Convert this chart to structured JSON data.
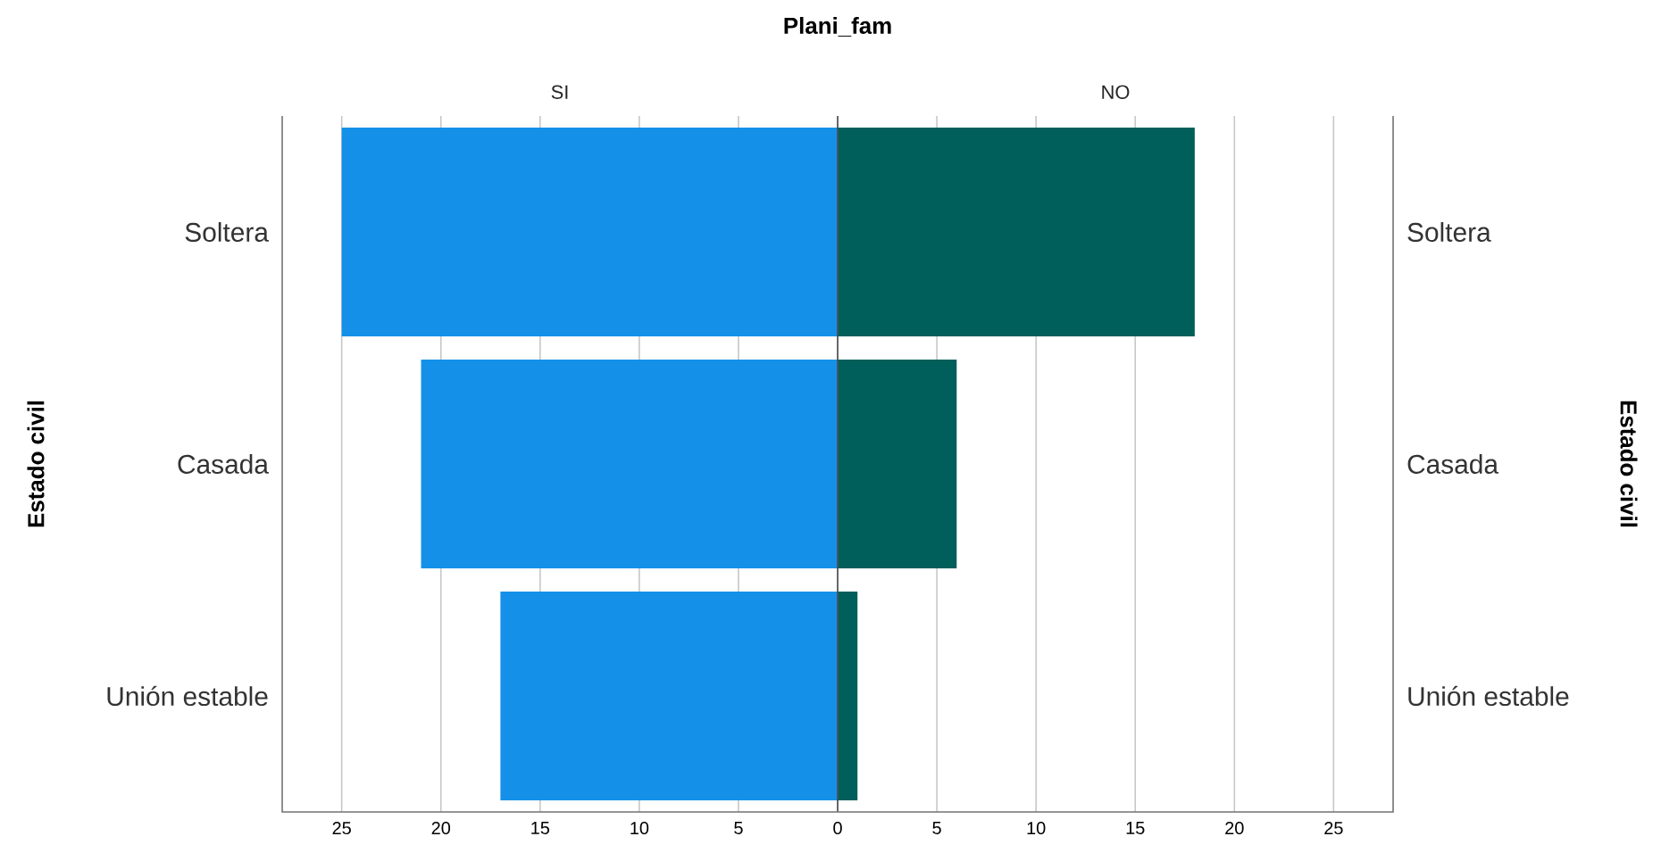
{
  "chart_data": {
    "type": "bar",
    "orientation": "horizontal",
    "stacked": true,
    "title": "Plani_fam",
    "ylabel": "Estado civil",
    "annotations": [
      "Estado civil"
    ],
    "categories": [
      "Soltera",
      "Casada",
      "Unión estable"
    ],
    "series": [
      {
        "name": "SI",
        "color": "#1490e8",
        "values": [
          -25,
          -21,
          -17
        ]
      },
      {
        "name": "NO",
        "color": "#005f5a",
        "values": [
          18,
          6,
          1
        ]
      }
    ],
    "xlim": [
      -28,
      28
    ],
    "xticks": [
      {
        "value": -25,
        "label": "25"
      },
      {
        "value": -20,
        "label": "20"
      },
      {
        "value": -15,
        "label": "15"
      },
      {
        "value": -10,
        "label": "10"
      },
      {
        "value": -5,
        "label": "5"
      },
      0,
      5,
      10,
      15,
      20,
      25
    ],
    "grid": "x"
  }
}
